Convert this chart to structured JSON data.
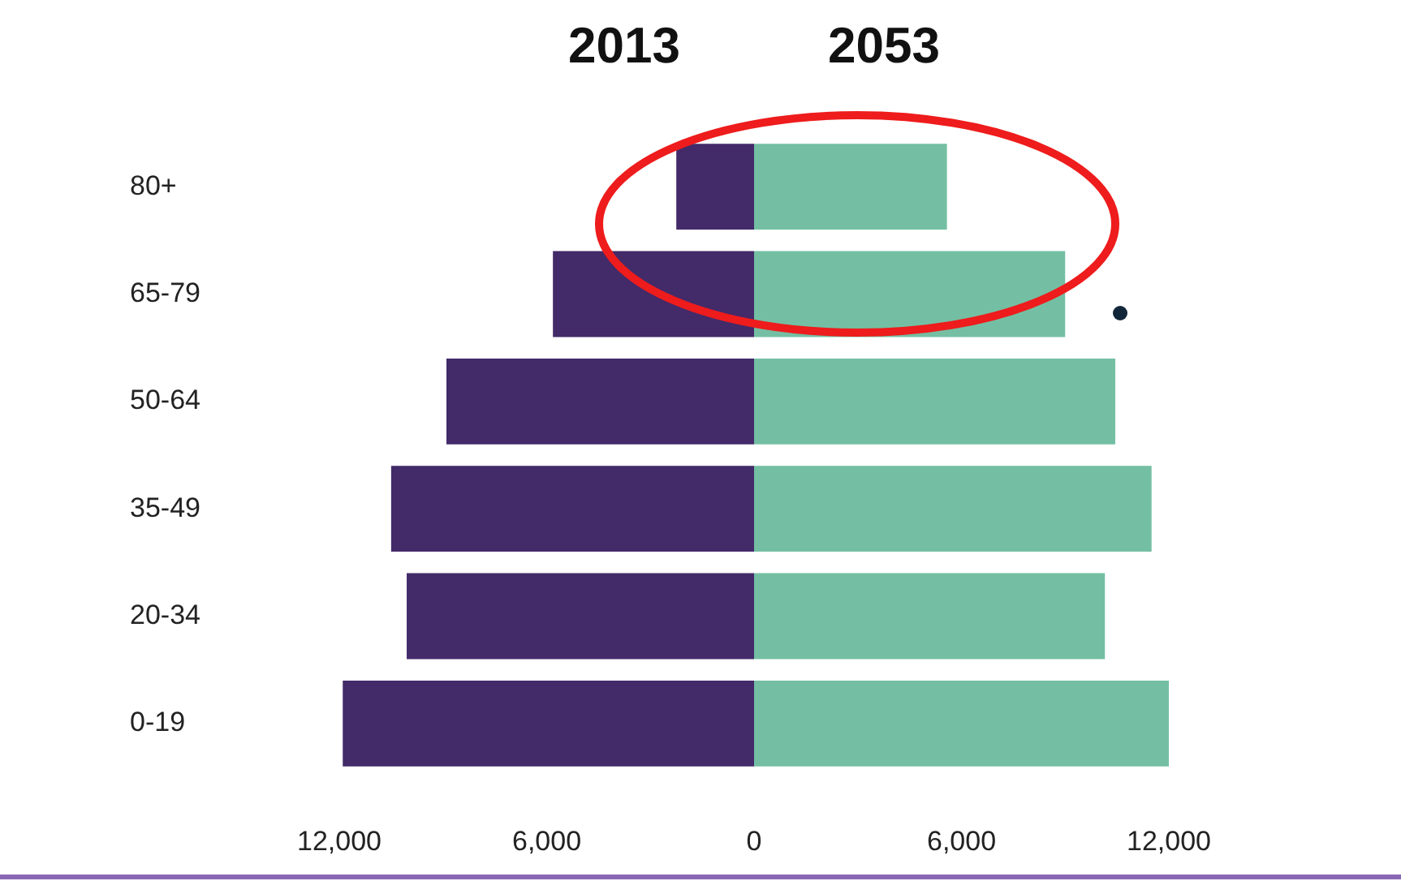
{
  "chart_data": {
    "type": "bar",
    "orientation": "horizontal",
    "stacked": true,
    "categories": [
      "80+",
      "65-79",
      "50-64",
      "35-49",
      "20-34",
      "0-19"
    ],
    "series": [
      {
        "name": "2013",
        "color": "#432a69",
        "values": [
          -2250,
          -5820,
          -8900,
          -10500,
          -10050,
          -11900
        ]
      },
      {
        "name": "2053",
        "color": "#74bfa3",
        "values": [
          5580,
          9000,
          10450,
          11500,
          10150,
          12000
        ]
      }
    ],
    "xlim": [
      -12000,
      12000
    ],
    "xticks": [
      {
        "value": -12000,
        "label": "12,000"
      },
      {
        "value": -6000,
        "label": "6,000"
      },
      0,
      {
        "value": 6000,
        "label": "6,000"
      },
      {
        "value": 12000,
        "label": "12,000"
      }
    ],
    "grid": false
  }
}
